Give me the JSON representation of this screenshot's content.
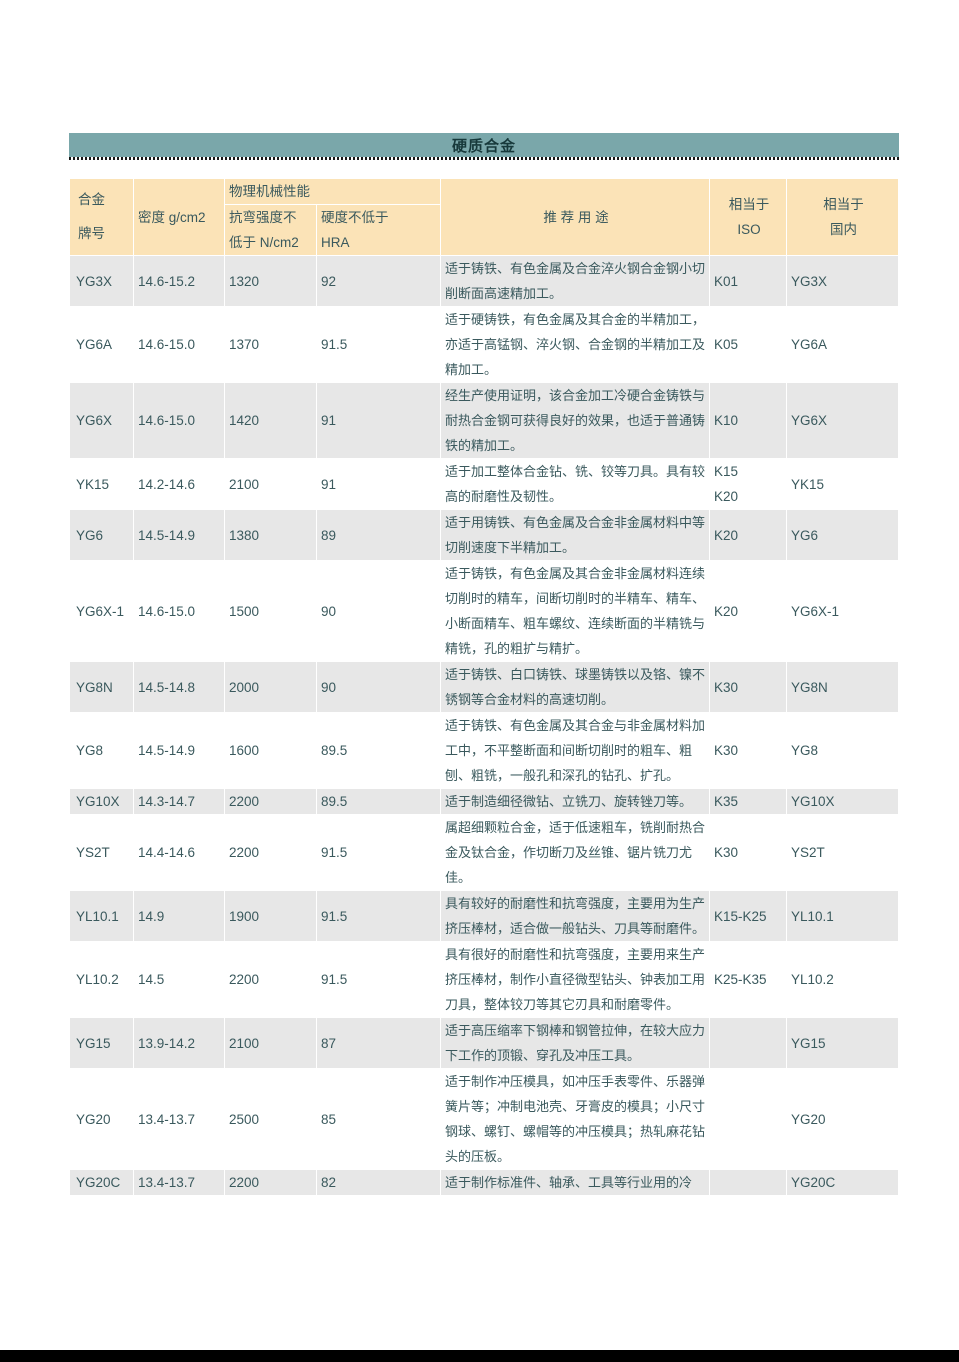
{
  "page": {
    "section_title": "硬质合金"
  },
  "colors": {
    "title_bar_bg": "#7AA7AA",
    "title_text": "#17393B",
    "header_bg": "#FBE3B7",
    "row_shade_bg": "#E7E7E7",
    "text": "#3A595D",
    "bottom_strip": "#000000"
  },
  "table": {
    "headers": {
      "grade": "合金\n牌号",
      "density": "密度 g/cm2",
      "phys_group": "物理机械性能",
      "strength": "抗弯强度不\n低于 N/cm2",
      "hardness": "硬度不低于\nHRA",
      "usage": "推 荐 用 途",
      "iso": "相当于\nISO",
      "domestic": "相当于\n国内"
    },
    "rows": [
      {
        "grade": "YG3X",
        "density": "14.6-15.2",
        "strength": "1320",
        "hardness": "92",
        "usage": "适于铸铁、有色金属及合金淬火钢合金钢小切削断面高速精加工。",
        "iso": "K01",
        "domestic": "YG3X"
      },
      {
        "grade": "YG6A",
        "density": "14.6-15.0",
        "strength": "1370",
        "hardness": "91.5",
        "usage": "适于硬铸铁，有色金属及其合金的半精加工，亦适于高锰钢、淬火钢、合金钢的半精加工及精加工。",
        "iso": "K05",
        "domestic": "YG6A"
      },
      {
        "grade": "YG6X",
        "density": "14.6-15.0",
        "strength": "1420",
        "hardness": "91",
        "usage": "经生产使用证明，该合金加工冷硬合金铸铁与耐热合金钢可获得良好的效果，也适于普通铸铁的精加工。",
        "iso": "K10",
        "domestic": "YG6X"
      },
      {
        "grade": "YK15",
        "density": "14.2-14.6",
        "strength": "2100",
        "hardness": "91",
        "usage": "适于加工整体合金钻、铣、铰等刀具。具有较高的耐磨性及韧性。",
        "iso": "K15\nK20",
        "domestic": "YK15"
      },
      {
        "grade": "YG6",
        "density": "14.5-14.9",
        "strength": "1380",
        "hardness": "89",
        "usage": "适于用铸铁、有色金属及合金非金属材料中等切削速度下半精加工。",
        "iso": "K20",
        "domestic": "YG6"
      },
      {
        "grade": "YG6X-1",
        "density": "14.6-15.0",
        "strength": "1500",
        "hardness": "90",
        "usage": "适于铸铁，有色金属及其合金非金属材料连续切削时的精车，间断切削时的半精车、精车、小断面精车、粗车螺纹、连续断面的半精铣与精铣，孔的粗扩与精扩。",
        "iso": "K20",
        "domestic": "YG6X-1"
      },
      {
        "grade": "YG8N",
        "density": "14.5-14.8",
        "strength": "2000",
        "hardness": "90",
        "usage": "适于铸铁、白口铸铁、球墨铸铁以及铬、镍不锈钢等合金材料的高速切削。",
        "iso": "K30",
        "domestic": "YG8N"
      },
      {
        "grade": "YG8",
        "density": "14.5-14.9",
        "strength": "1600",
        "hardness": "89.5",
        "usage": "适于铸铁、有色金属及其合金与非金属材料加工中，不平整断面和间断切削时的粗车、粗刨、粗铣，一般孔和深孔的钻孔、扩孔。",
        "iso": "K30",
        "domestic": "YG8"
      },
      {
        "grade": "YG10X",
        "density": "14.3-14.7",
        "strength": "2200",
        "hardness": "89.5",
        "usage": "适于制造细径微钻、立铣刀、旋转锉刀等。",
        "iso": "K35",
        "domestic": "YG10X"
      },
      {
        "grade": "YS2T",
        "density": "14.4-14.6",
        "strength": "2200",
        "hardness": "91.5",
        "usage": "属超细颗粒合金，适于低速粗车，铣削耐热合金及钛合金，作切断刀及丝锥、锯片铣刀尤佳。",
        "iso": "K30",
        "domestic": "YS2T"
      },
      {
        "grade": "YL10.1",
        "density": "14.9",
        "strength": "1900",
        "hardness": "91.5",
        "usage": "具有较好的耐磨性和抗弯强度，主要用为生产挤压棒材，适合做一般钻头、刀具等耐磨件。",
        "iso": "K15-K25",
        "domestic": "YL10.1"
      },
      {
        "grade": "YL10.2",
        "density": "14.5",
        "strength": "2200",
        "hardness": "91.5",
        "usage": "具有很好的耐磨性和抗弯强度，主要用来生产挤压棒材，制作小直径微型钻头、钟表加工用刀具，整体铰刀等其它刃具和耐磨零件。",
        "iso": "K25-K35",
        "domestic": "YL10.2"
      },
      {
        "grade": "YG15",
        "density": "13.9-14.2",
        "strength": "2100",
        "hardness": "87",
        "usage": "适于高压缩率下钢棒和钢管拉伸，在较大应力下工作的顶锻、穿孔及冲压工具。",
        "iso": "",
        "domestic": "YG15"
      },
      {
        "grade": "YG20",
        "density": "13.4-13.7",
        "strength": "2500",
        "hardness": "85",
        "usage": "适于制作冲压模具，如冲压手表零件、乐器弹簧片等；冲制电池壳、牙膏皮的模具；小尺寸钢球、螺钉、螺帽等的冲压模具；热轧麻花钻头的压板。",
        "iso": "",
        "domestic": "YG20"
      },
      {
        "grade": "YG20C",
        "density": "13.4-13.7",
        "strength": "2200",
        "hardness": "82",
        "usage": "适于制作标准件、轴承、工具等行业用的冷",
        "iso": "",
        "domestic": "YG20C"
      }
    ]
  }
}
